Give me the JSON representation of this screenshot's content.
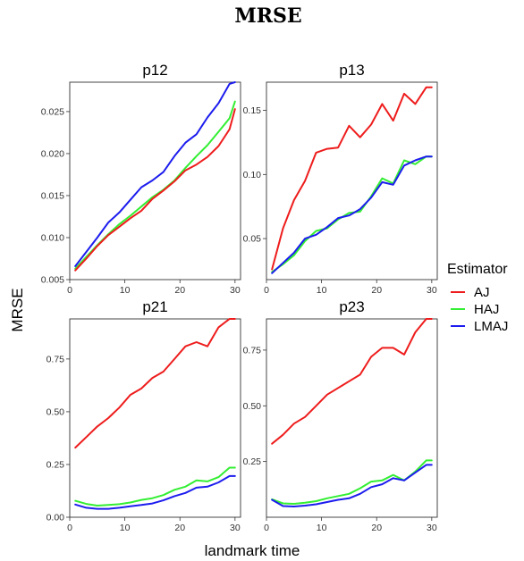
{
  "figure_title": "MRSE",
  "chart_data": {
    "type": "line",
    "title": "MRSE",
    "xlabel": "landmark time",
    "ylabel": "MRSE",
    "legend": {
      "title": "Estimator",
      "placement": "right",
      "entries": [
        {
          "name": "AJ",
          "color": "#ee1c1c"
        },
        {
          "name": "HAJ",
          "color": "#33ee33"
        },
        {
          "name": "LMAJ",
          "color": "#1c1cee"
        }
      ]
    },
    "x": [
      1,
      3,
      5,
      7,
      9,
      11,
      13,
      15,
      17,
      19,
      21,
      23,
      25,
      27,
      29,
      30
    ],
    "panels": [
      {
        "title": "p12",
        "xlim": [
          0,
          31
        ],
        "ylim": [
          0.005,
          0.0285
        ],
        "xticks": [
          0,
          10,
          20,
          30
        ],
        "yticks": [
          0.005,
          0.01,
          0.015,
          0.02,
          0.025
        ],
        "ytick_labels": [
          "0.005",
          "0.010",
          "0.015",
          "0.020",
          "0.025"
        ],
        "series": [
          {
            "name": "AJ",
            "values": [
              0.0061,
              0.0075,
              0.009,
              0.0103,
              0.0113,
              0.0123,
              0.0132,
              0.0146,
              0.0156,
              0.0167,
              0.018,
              0.0187,
              0.0196,
              0.0209,
              0.0229,
              0.0253
            ]
          },
          {
            "name": "HAJ",
            "values": [
              0.0063,
              0.0077,
              0.0091,
              0.0104,
              0.0116,
              0.0126,
              0.0137,
              0.0148,
              0.0157,
              0.0168,
              0.0183,
              0.0197,
              0.021,
              0.0226,
              0.0242,
              0.0262
            ]
          },
          {
            "name": "LMAJ",
            "values": [
              0.0066,
              0.0083,
              0.01,
              0.0118,
              0.013,
              0.0145,
              0.016,
              0.0168,
              0.0178,
              0.0197,
              0.0213,
              0.0223,
              0.0243,
              0.026,
              0.0283,
              0.0285
            ]
          }
        ]
      },
      {
        "title": "p13",
        "xlim": [
          0,
          31
        ],
        "ylim": [
          0.018,
          0.172
        ],
        "xticks": [
          0,
          10,
          20,
          30
        ],
        "yticks": [
          0.05,
          0.1,
          0.15
        ],
        "ytick_labels": [
          "0.05",
          "0.10",
          "0.15"
        ],
        "series": [
          {
            "name": "AJ",
            "values": [
              0.026,
              0.058,
              0.08,
              0.095,
              0.117,
              0.12,
              0.121,
              0.138,
              0.129,
              0.139,
              0.155,
              0.142,
              0.163,
              0.155,
              0.168,
              0.168
            ]
          },
          {
            "name": "HAJ",
            "values": [
              0.024,
              0.03,
              0.037,
              0.048,
              0.056,
              0.058,
              0.065,
              0.07,
              0.071,
              0.083,
              0.097,
              0.093,
              0.111,
              0.108,
              0.114,
              0.114
            ]
          },
          {
            "name": "LMAJ",
            "values": [
              0.023,
              0.031,
              0.039,
              0.05,
              0.053,
              0.059,
              0.066,
              0.068,
              0.073,
              0.082,
              0.094,
              0.092,
              0.107,
              0.111,
              0.114,
              0.114
            ]
          }
        ]
      },
      {
        "title": "p21",
        "xlim": [
          0,
          31
        ],
        "ylim": [
          0.0,
          0.94
        ],
        "xticks": [
          0,
          10,
          20,
          30
        ],
        "yticks": [
          0.0,
          0.25,
          0.5,
          0.75
        ],
        "ytick_labels": [
          "0.00",
          "0.25",
          "0.50",
          "0.75"
        ],
        "series": [
          {
            "name": "AJ",
            "values": [
              0.33,
              0.38,
              0.43,
              0.47,
              0.52,
              0.58,
              0.61,
              0.66,
              0.69,
              0.75,
              0.81,
              0.83,
              0.81,
              0.9,
              0.94,
              0.94
            ]
          },
          {
            "name": "HAJ",
            "values": [
              0.078,
              0.063,
              0.055,
              0.058,
              0.062,
              0.07,
              0.082,
              0.09,
              0.105,
              0.13,
              0.145,
              0.175,
              0.17,
              0.19,
              0.235,
              0.235
            ]
          },
          {
            "name": "LMAJ",
            "values": [
              0.06,
              0.045,
              0.04,
              0.04,
              0.045,
              0.052,
              0.058,
              0.065,
              0.08,
              0.1,
              0.115,
              0.14,
              0.145,
              0.165,
              0.195,
              0.195
            ]
          }
        ]
      },
      {
        "title": "p23",
        "xlim": [
          0,
          31
        ],
        "ylim": [
          0.0,
          0.89
        ],
        "xticks": [
          0,
          10,
          20,
          30
        ],
        "yticks": [
          0.25,
          0.5,
          0.75
        ],
        "ytick_labels": [
          "0.25",
          "0.50",
          "0.75"
        ],
        "series": [
          {
            "name": "AJ",
            "values": [
              0.33,
              0.37,
              0.42,
              0.45,
              0.5,
              0.55,
              0.58,
              0.61,
              0.64,
              0.72,
              0.76,
              0.76,
              0.73,
              0.83,
              0.89,
              0.89
            ]
          },
          {
            "name": "HAJ",
            "values": [
              0.08,
              0.062,
              0.06,
              0.065,
              0.072,
              0.085,
              0.095,
              0.105,
              0.13,
              0.16,
              0.165,
              0.19,
              0.165,
              0.205,
              0.255,
              0.255
            ]
          },
          {
            "name": "LMAJ",
            "values": [
              0.078,
              0.05,
              0.048,
              0.052,
              0.058,
              0.068,
              0.078,
              0.085,
              0.105,
              0.135,
              0.148,
              0.175,
              0.165,
              0.2,
              0.235,
              0.235
            ]
          }
        ]
      }
    ]
  }
}
